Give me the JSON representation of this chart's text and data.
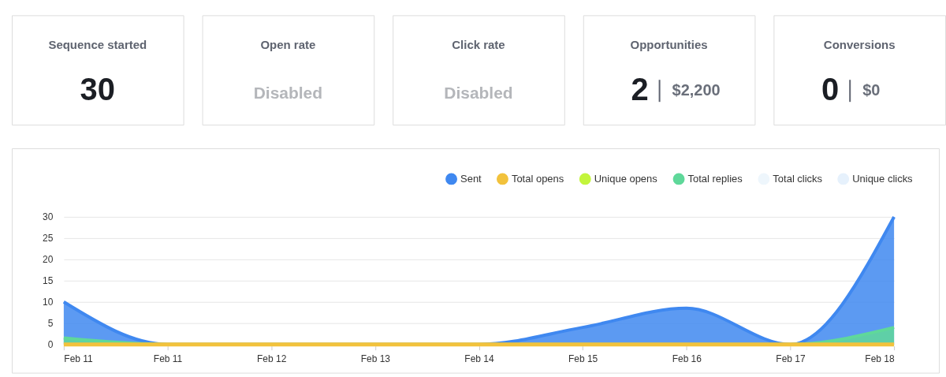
{
  "chart_data": [
    {
      "type": "other",
      "title": "Sequence started",
      "annotations": [
        "30"
      ]
    },
    {
      "type": "other",
      "title": "Open rate",
      "subtitle": "Disabled"
    },
    {
      "type": "other",
      "title": "Click rate",
      "subtitle": "Disabled"
    },
    {
      "type": "other",
      "title": "Opportunities",
      "annotations": [
        "2",
        "$2,200"
      ]
    },
    {
      "type": "other",
      "title": "Conversions",
      "annotations": [
        "0",
        "$0"
      ]
    },
    {
      "type": "area",
      "categories": [
        "Feb 11",
        "Feb 11",
        "Feb 12",
        "Feb 13",
        "Feb 14",
        "Feb 15",
        "Feb 16",
        "Feb 17",
        "Feb 18"
      ],
      "series": [
        {
          "name": "Sent",
          "color": "#3f88f0",
          "values": [
            10,
            0,
            0,
            0,
            0,
            4,
            8.5,
            0,
            30
          ]
        },
        {
          "name": "Total opens",
          "type": "line",
          "color": "#f2c23c",
          "values": [
            0,
            0,
            0,
            0,
            0,
            0,
            0,
            0,
            0
          ]
        },
        {
          "name": "Unique opens",
          "color": "#c3f53c",
          "values": [
            null,
            null,
            null,
            null,
            null,
            null,
            null,
            null,
            null
          ]
        },
        {
          "name": "Total replies",
          "color": "#5fd89a",
          "values": [
            1.5,
            0,
            0,
            0,
            0,
            0,
            0,
            0,
            4
          ]
        },
        {
          "name": "Total clicks",
          "color": "#eef6fc",
          "values": [
            null,
            null,
            null,
            null,
            null,
            null,
            null,
            null,
            null
          ]
        },
        {
          "name": "Unique clicks",
          "color": "#e6f1fc",
          "values": [
            null,
            null,
            null,
            null,
            null,
            null,
            null,
            null,
            null
          ]
        }
      ],
      "ylim": [
        0,
        30
      ],
      "yticks": [
        0,
        5,
        10,
        15,
        20,
        25,
        30
      ],
      "grid": "y",
      "legend": "top right"
    }
  ]
}
